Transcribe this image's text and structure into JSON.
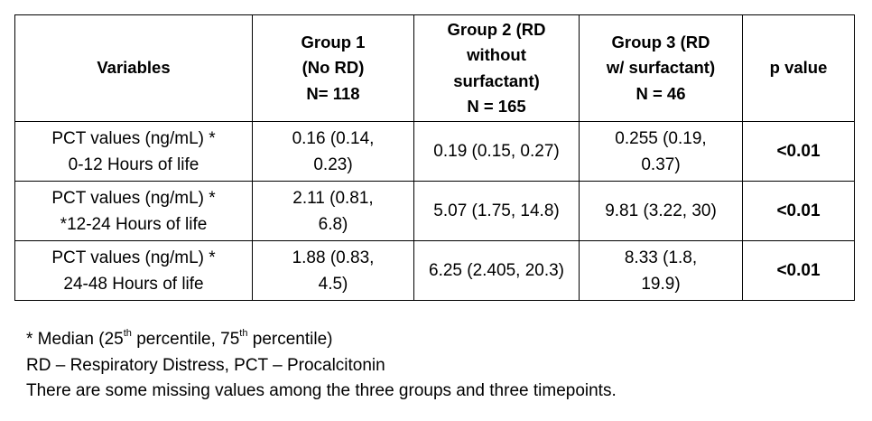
{
  "table": {
    "headers": [
      {
        "lines": [
          "Variables"
        ]
      },
      {
        "lines": [
          "Group 1",
          "(No RD)",
          "N= 118"
        ]
      },
      {
        "lines": [
          "Group 2 (RD",
          "without",
          "surfactant)",
          "N = 165"
        ]
      },
      {
        "lines": [
          "Group 3 (RD",
          "w/ surfactant)",
          "N = 46"
        ]
      },
      {
        "lines": [
          "p value"
        ]
      }
    ],
    "rows": [
      {
        "variable": [
          "PCT values (ng/mL) *",
          "0-12 Hours of life"
        ],
        "group1": [
          "0.16 (0.14,",
          "0.23)"
        ],
        "group2": [
          "0.19 (0.15, 0.27)"
        ],
        "group3": [
          "0.255 (0.19,",
          "0.37)"
        ],
        "p_value": "<0.01"
      },
      {
        "variable": [
          "PCT values (ng/mL) *",
          "*12-24 Hours of life"
        ],
        "group1": [
          "2.11 (0.81,",
          "6.8)"
        ],
        "group2": [
          "5.07 (1.75, 14.8)"
        ],
        "group3": [
          "9.81 (3.22, 30)"
        ],
        "p_value": "<0.01"
      },
      {
        "variable": [
          "PCT values (ng/mL) *",
          "24-48 Hours of life"
        ],
        "group1": [
          "1.88 (0.83,",
          "4.5)"
        ],
        "group2": [
          "6.25 (2.405, 20.3)"
        ],
        "group3": [
          "8.33 (1.8,",
          "19.9)"
        ],
        "p_value": "<0.01"
      }
    ]
  },
  "notes": {
    "line1": {
      "prefix": "* Median (25",
      "sup1": "th",
      "middle": " percentile, 75",
      "sup2": "th",
      "suffix": " percentile)"
    },
    "line2": "RD – Respiratory Distress, PCT – Procalcitonin",
    "line3": "There are some missing values among the three groups and three timepoints."
  }
}
